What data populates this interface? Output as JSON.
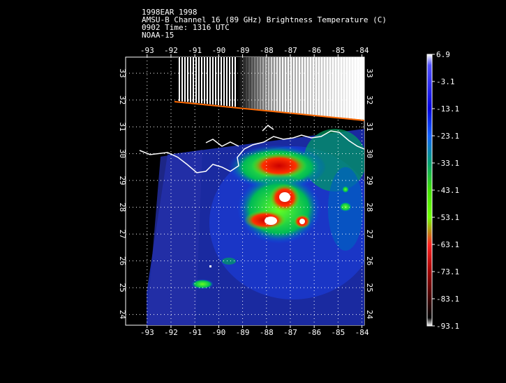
{
  "header": {
    "line1": "1998EAR 1998",
    "line2": "AMSU-B Channel 16 (89 GHz) Brightness Temperature (C)",
    "line3": "0902 Time: 1316 UTC",
    "line4": "NOAA-15"
  },
  "map": {
    "lon_ticks": [
      "-93",
      "-92",
      "-91",
      "-90",
      "-89",
      "-88",
      "-87",
      "-86",
      "-85",
      "-84"
    ],
    "lat_ticks": [
      "33",
      "32",
      "31",
      "30",
      "29",
      "28",
      "27",
      "26",
      "25",
      "24"
    ],
    "lon_range": [
      -93.9,
      -83.9
    ],
    "lat_range": [
      23.6,
      33.6
    ]
  },
  "colorbar": {
    "labels": [
      "6.9",
      "-3.1",
      "-13.1",
      "-23.1",
      "-33.1",
      "-43.1",
      "-53.1",
      "-63.1",
      "-73.1",
      "-83.1",
      "-93.1"
    ],
    "range": [
      -93.1,
      6.9
    ],
    "stops": [
      "#ffffff",
      "#2a0000",
      "#a00000",
      "#ff2020",
      "#70ff00",
      "#00c040",
      "#0a2dff",
      "#0000e0",
      "#5a5aff",
      "#ffffff"
    ]
  }
}
